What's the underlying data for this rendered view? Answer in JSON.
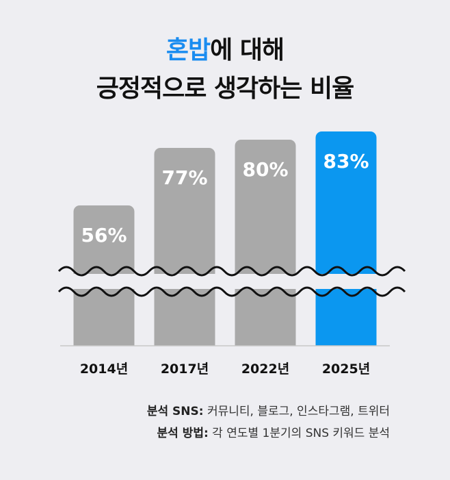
{
  "title": {
    "accent": "혼밥",
    "line1_rest": "에 대해",
    "line2": "긍정적으로 생각하는 비율"
  },
  "colors": {
    "accent": "#1a8cf0",
    "bar_default": "#a9a9a9",
    "bar_highlight": "#0b97f0",
    "background": "#eeeef2"
  },
  "chart_data": {
    "type": "bar",
    "categories": [
      "2014년",
      "2017년",
      "2022년",
      "2025년"
    ],
    "values": [
      56,
      77,
      80,
      83
    ],
    "labels": [
      "56%",
      "77%",
      "80%",
      "83%"
    ],
    "highlight_index": 3,
    "axis_break": true
  },
  "notes": [
    {
      "label": "분석 SNS:",
      "text": " 커뮤니티, 블로그, 인스타그램, 트위터"
    },
    {
      "label": "분석 방법:",
      "text": " 각 연도별 1분기의 SNS 키워드 분석"
    }
  ]
}
